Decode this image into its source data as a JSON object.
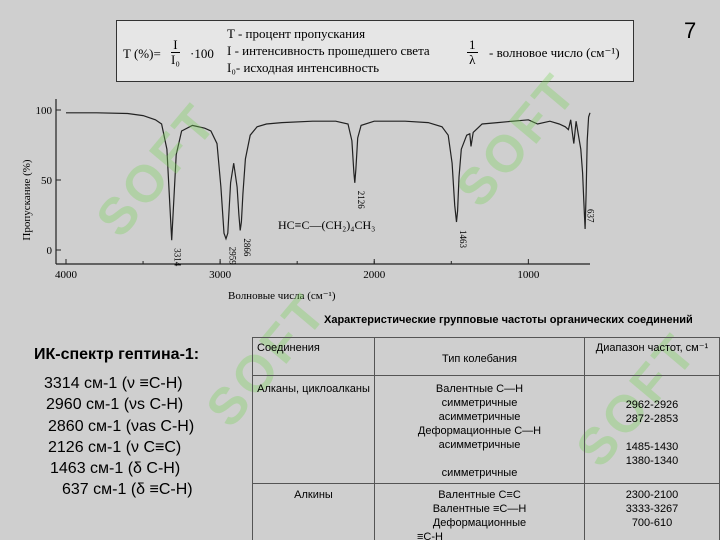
{
  "slide_number": "7",
  "formula": {
    "lhs": "T (%)=",
    "frac_num": "I",
    "frac_den": "I₀",
    "multiplier": "·100",
    "def_T": "T - процент пропускания",
    "def_I": "I - интенсивность прошедшего света",
    "def_I0": "I₀- исходная интенсивность",
    "wn_num": "1",
    "wn_den": "λ",
    "wn_label": "- волновое число (см⁻¹)"
  },
  "chart_data": {
    "type": "line",
    "xlabel": "Волновые числа (см⁻¹)",
    "ylabel": "Пропускание (%)",
    "xlim": [
      4000,
      600
    ],
    "ylim": [
      0,
      100
    ],
    "x_ticks": [
      "4000",
      "3000",
      "2000",
      "1000"
    ],
    "y_ticks": [
      "0",
      "50",
      "100"
    ],
    "molecule": "HC≡C—(CH₂)₄CH₃",
    "peak_labels": [
      {
        "x": 3314,
        "label": "3314"
      },
      {
        "x": 2959,
        "label": "2959"
      },
      {
        "x": 2866,
        "label": "2866"
      },
      {
        "x": 2126,
        "label": "2126"
      },
      {
        "x": 1463,
        "label": "1463"
      },
      {
        "x": 637,
        "label": "637"
      }
    ],
    "series": [
      {
        "x": [
          4000,
          3800,
          3600,
          3500,
          3420,
          3380,
          3345,
          3325,
          3314,
          3303,
          3285,
          3250,
          3180,
          3100,
          3060,
          3020,
          2995,
          2975,
          2962,
          2950,
          2932,
          2912,
          2890,
          2878,
          2870,
          2862,
          2852,
          2836,
          2805,
          2760,
          2700,
          2600,
          2400,
          2250,
          2170,
          2145,
          2132,
          2126,
          2119,
          2107,
          2085,
          2000,
          1800,
          1650,
          1560,
          1520,
          1495,
          1478,
          1466,
          1459,
          1450,
          1435,
          1400,
          1380,
          1372,
          1358,
          1300,
          1200,
          1100,
          1000,
          940,
          860,
          800,
          760,
          740,
          725,
          715,
          705,
          690,
          672,
          660,
          648,
          640,
          632,
          625,
          618,
          609,
          600
        ],
        "y": [
          98,
          98,
          97.5,
          96,
          93,
          90,
          72,
          30,
          7,
          30,
          68,
          85,
          89,
          87,
          85,
          76,
          45,
          12,
          8,
          12,
          48,
          62,
          45,
          25,
          14,
          20,
          40,
          65,
          82,
          88,
          90,
          91,
          92,
          92,
          90,
          78,
          55,
          48,
          58,
          80,
          89,
          92,
          92,
          91,
          88,
          82,
          62,
          32,
          20,
          28,
          52,
          72,
          82,
          83,
          74,
          84,
          90,
          91,
          92,
          93,
          90,
          92,
          90,
          88,
          86,
          93,
          84,
          76,
          92,
          80,
          72,
          55,
          35,
          15,
          40,
          78,
          95,
          98
        ]
      }
    ]
  },
  "ir": {
    "title": "ИК-спектр гептина-1:",
    "lines": [
      "3314 см-1 (ν ≡C-H)",
      "2960 см-1 (νs C-H)",
      "2860 см-1 (νas C-H)",
      "2126 см-1 (ν C≡C)",
      "1463 см-1 (δ C-H)",
      "637 см-1 (δ ≡C-H)"
    ]
  },
  "table": {
    "caption": "Характеристические групповые частоты органических соединений",
    "headers": [
      "Соединения",
      "Тип колебания",
      "Диапазон частот,  см⁻¹"
    ],
    "rows": [
      {
        "group": "Алканы, циклоалканы",
        "types": [
          "Валентные С—Н",
          "симметричные",
          "асимметричные",
          "Деформационные С—Н",
          "асимметричные",
          "",
          "симметричные"
        ],
        "ranges": [
          "",
          "2962-2926",
          "2872-2853",
          "",
          "1485-1430",
          "1380-1340",
          ""
        ]
      },
      {
        "group": "Алкины",
        "types": [
          "Валентные С≡С",
          "Валентные ≡С—Н",
          "Деформационные",
          "≡С-Н"
        ],
        "ranges": [
          "2300-2100",
          "3333-3267",
          "700-610",
          ""
        ]
      }
    ]
  }
}
